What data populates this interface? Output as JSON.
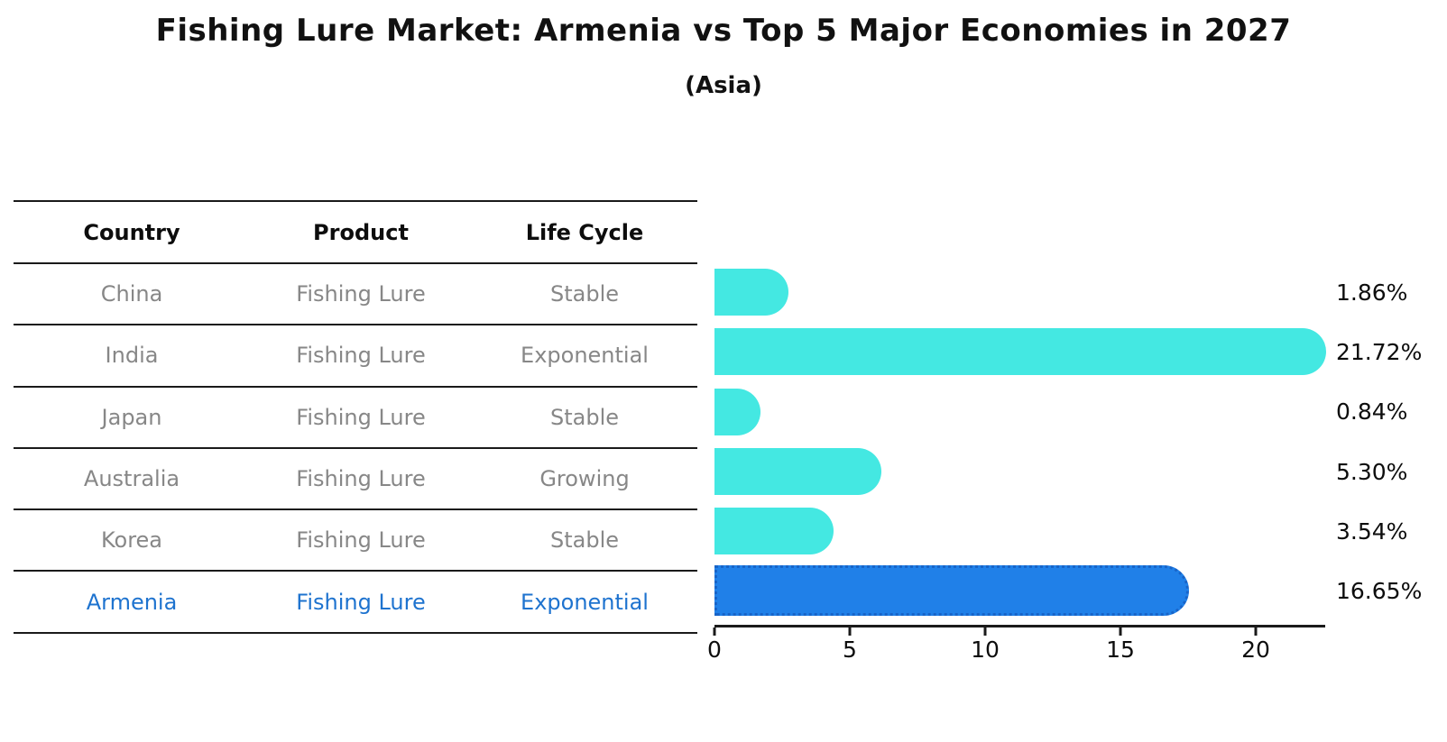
{
  "chart_data": {
    "type": "bar",
    "orientation": "horizontal",
    "title": "Fishing Lure Market: Armenia vs Top 5 Major Economies in 2027",
    "subtitle": "(Asia)",
    "categories": [
      "China",
      "India",
      "Japan",
      "Australia",
      "Korea",
      "Armenia"
    ],
    "values": [
      1.86,
      21.72,
      0.84,
      5.3,
      3.54,
      16.65
    ],
    "value_labels": [
      "1.86%",
      "21.72%",
      "0.84%",
      "5.30%",
      "3.54%",
      "16.65%"
    ],
    "highlighted_category": "Armenia",
    "xticks": [
      0,
      5,
      10,
      15,
      20
    ],
    "xlim": [
      0,
      22.57
    ],
    "grid": false,
    "legend": false,
    "colors": {
      "bar": "#44e8e2",
      "highlight_bar": "#2080e8",
      "highlight_border": "#1864c8",
      "highlight_text": "#1e73cf",
      "table_text": "#878787",
      "ink": "#111111"
    }
  },
  "table": {
    "headers": [
      "Country",
      "Product",
      "Life Cycle"
    ],
    "rows": [
      {
        "country": "China",
        "product": "Fishing Lure",
        "life_cycle": "Stable",
        "value_label": "1.86%"
      },
      {
        "country": "India",
        "product": "Fishing Lure",
        "life_cycle": "Exponential",
        "value_label": "21.72%"
      },
      {
        "country": "Japan",
        "product": "Fishing Lure",
        "life_cycle": "Stable",
        "value_label": "0.84%"
      },
      {
        "country": "Australia",
        "product": "Fishing Lure",
        "life_cycle": "Growing",
        "value_label": "5.30%"
      },
      {
        "country": "Korea",
        "product": "Fishing Lure",
        "life_cycle": "Stable",
        "value_label": "3.54%"
      },
      {
        "country": "Armenia",
        "product": "Fishing Lure",
        "life_cycle": "Exponential",
        "value_label": "16.65%"
      }
    ]
  }
}
